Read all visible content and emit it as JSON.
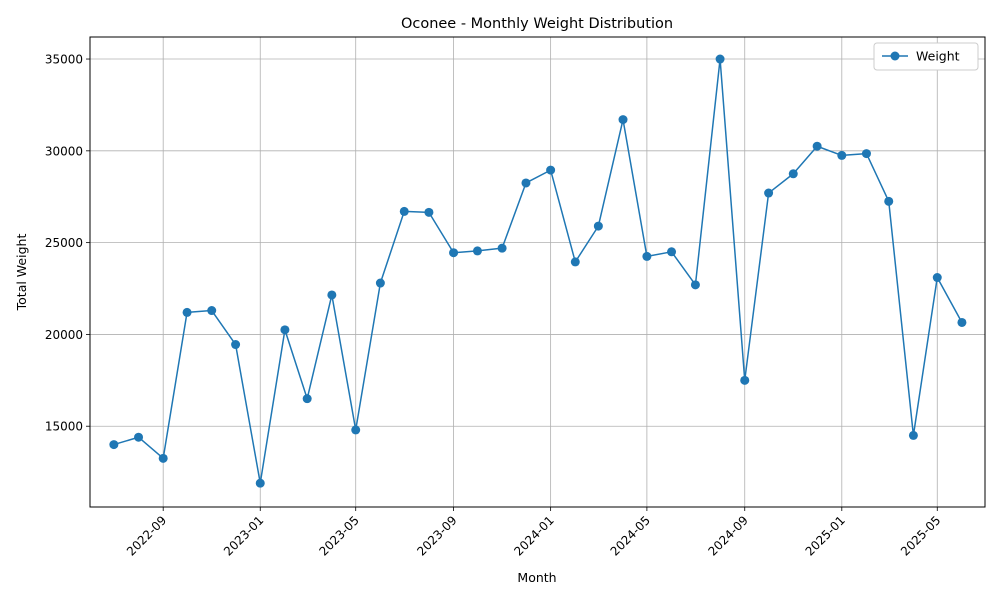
{
  "chart_data": {
    "type": "line",
    "title": "Oconee - Monthly Weight Distribution",
    "xlabel": "Month",
    "ylabel": "Total Weight",
    "grid": true,
    "legend_position": "top-right",
    "xlim": [
      "2022-06-01",
      "2025-06-30"
    ],
    "ylim": [
      10600,
      36200
    ],
    "x_ticks": [
      "2022-09",
      "2023-01",
      "2023-05",
      "2023-09",
      "2024-01",
      "2024-05",
      "2024-09",
      "2025-01",
      "2025-05"
    ],
    "y_ticks": [
      15000,
      20000,
      25000,
      30000,
      35000
    ],
    "x": [
      "2022-07-01",
      "2022-08-01",
      "2022-09-01",
      "2022-10-01",
      "2022-11-01",
      "2022-12-01",
      "2023-01-01",
      "2023-02-01",
      "2023-03-01",
      "2023-04-01",
      "2023-05-01",
      "2023-06-01",
      "2023-07-01",
      "2023-08-01",
      "2023-09-01",
      "2023-10-01",
      "2023-11-01",
      "2023-12-01",
      "2024-01-01",
      "2024-02-01",
      "2024-03-01",
      "2024-04-01",
      "2024-05-01",
      "2024-06-01",
      "2024-07-01",
      "2024-08-01",
      "2024-09-01",
      "2024-10-01",
      "2024-11-01",
      "2024-12-01",
      "2025-01-01",
      "2025-02-01",
      "2025-03-01",
      "2025-04-01",
      "2025-05-01",
      "2025-06-01"
    ],
    "series": [
      {
        "name": "Weight",
        "color": "#1f77b4",
        "marker": "circle",
        "values": [
          14000,
          14400,
          13250,
          21200,
          21300,
          19450,
          11900,
          20250,
          16500,
          22150,
          14800,
          22800,
          26700,
          26650,
          24450,
          24550,
          24700,
          28250,
          28950,
          23950,
          25900,
          31700,
          24250,
          24500,
          22700,
          35000,
          17500,
          27700,
          28750,
          30250,
          29750,
          29850,
          27250,
          14500,
          23100,
          20650
        ]
      }
    ]
  }
}
